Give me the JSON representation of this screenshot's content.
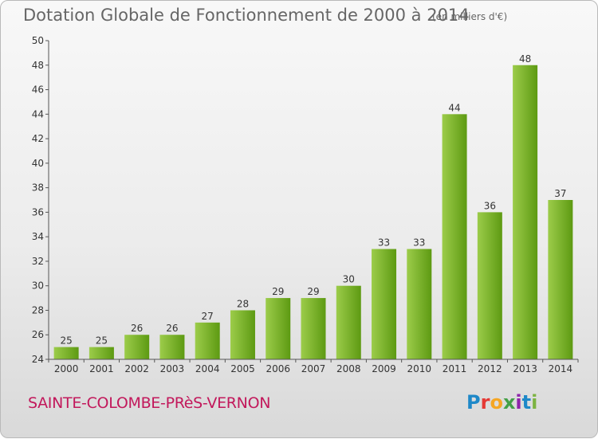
{
  "header": {
    "title": "Dotation Globale de Fonctionnement de 2000 à 2014",
    "unit": "(en milliers d'€)"
  },
  "footer": {
    "commune": "SAINTE-COLOMBE-PRèS-VERNON",
    "logo": "Proxiti",
    "logo_colors": [
      "#1e88c8",
      "#e53935",
      "#f5a623",
      "#43a047",
      "#8e24aa",
      "#1e88c8",
      "#7cb342"
    ]
  },
  "colors": {
    "bar_light": "#9ccc4a",
    "bar_dark": "#5d9a12",
    "text": "#333333",
    "axis": "#555555"
  },
  "chart_data": {
    "type": "bar",
    "title": "Dotation Globale de Fonctionnement de 2000 à 2014",
    "subtitle": "(en milliers d'€)",
    "categories": [
      "2000",
      "2001",
      "2002",
      "2003",
      "2004",
      "2005",
      "2006",
      "2007",
      "2008",
      "2009",
      "2010",
      "2011",
      "2012",
      "2013",
      "2014"
    ],
    "values": [
      25,
      25,
      26,
      26,
      27,
      28,
      29,
      29,
      30,
      33,
      33,
      44,
      36,
      48,
      37
    ],
    "ylim": [
      24,
      50
    ],
    "yticks": [
      24,
      26,
      28,
      30,
      32,
      34,
      36,
      38,
      40,
      42,
      44,
      46,
      48,
      50
    ],
    "grid": false,
    "legend": "none"
  }
}
